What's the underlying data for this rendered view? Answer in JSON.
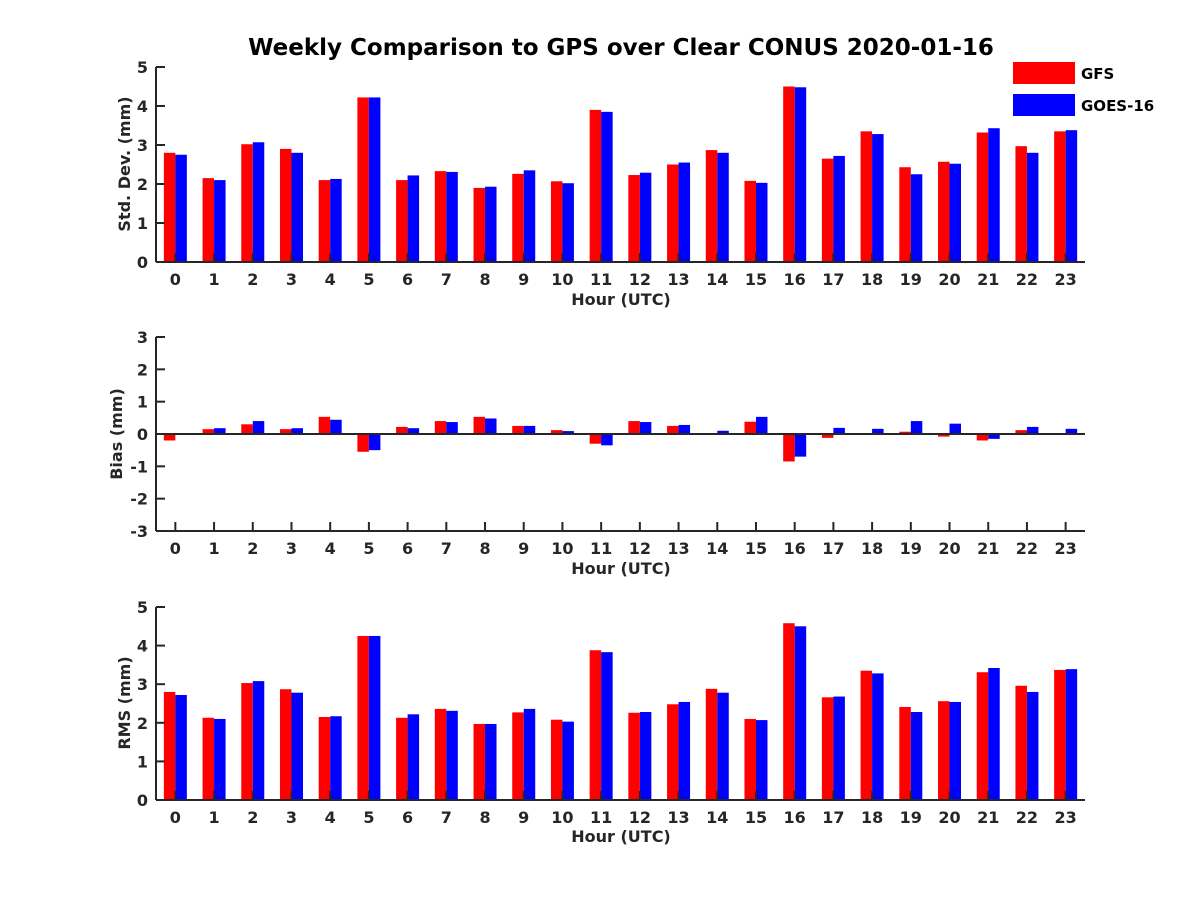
{
  "title": "Weekly Comparison to GPS over Clear CONUS 2020-01-16",
  "legend": [
    {
      "name": "GFS",
      "color": "#ff0000"
    },
    {
      "name": "GOES-16",
      "color": "#0000ff"
    }
  ],
  "chart_data": [
    {
      "type": "bar",
      "title": "Weekly Comparison to GPS over Clear CONUS 2020-01-16",
      "xlabel": "Hour (UTC)",
      "ylabel": "Std. Dev. (mm)",
      "ylim": [
        0,
        5
      ],
      "yticks": [
        0,
        1,
        2,
        3,
        4,
        5
      ],
      "categories": [
        "0",
        "1",
        "2",
        "3",
        "4",
        "5",
        "6",
        "7",
        "8",
        "9",
        "10",
        "11",
        "12",
        "13",
        "14",
        "15",
        "16",
        "17",
        "18",
        "19",
        "20",
        "21",
        "22",
        "23"
      ],
      "series": [
        {
          "name": "GFS",
          "color": "#ff0000",
          "values": [
            2.8,
            2.15,
            3.02,
            2.9,
            2.1,
            4.22,
            2.1,
            2.33,
            1.9,
            2.26,
            2.07,
            3.9,
            2.23,
            2.5,
            2.87,
            2.08,
            4.5,
            2.65,
            3.35,
            2.43,
            2.57,
            3.32,
            2.97,
            3.35
          ]
        },
        {
          "name": "GOES-16",
          "color": "#0000ff",
          "values": [
            2.75,
            2.1,
            3.07,
            2.8,
            2.13,
            4.22,
            2.22,
            2.31,
            1.93,
            2.35,
            2.02,
            3.85,
            2.29,
            2.55,
            2.8,
            2.03,
            4.48,
            2.72,
            3.28,
            2.25,
            2.52,
            3.43,
            2.8,
            3.38
          ]
        }
      ]
    },
    {
      "type": "bar",
      "title": "",
      "xlabel": "Hour (UTC)",
      "ylabel": "Bias (mm)",
      "ylim": [
        -3,
        3
      ],
      "yticks": [
        -3,
        -2,
        -1,
        0,
        1,
        2,
        3
      ],
      "categories": [
        "0",
        "1",
        "2",
        "3",
        "4",
        "5",
        "6",
        "7",
        "8",
        "9",
        "10",
        "11",
        "12",
        "13",
        "14",
        "15",
        "16",
        "17",
        "18",
        "19",
        "20",
        "21",
        "22",
        "23"
      ],
      "series": [
        {
          "name": "GFS",
          "color": "#ff0000",
          "values": [
            -0.2,
            0.15,
            0.3,
            0.15,
            0.53,
            -0.55,
            0.22,
            0.4,
            0.53,
            0.25,
            0.12,
            -0.3,
            0.4,
            0.25,
            0.0,
            0.38,
            -0.85,
            -0.12,
            -0.03,
            0.07,
            -0.08,
            -0.2,
            0.12,
            0.0
          ]
        },
        {
          "name": "GOES-16",
          "color": "#0000ff",
          "values": [
            0.0,
            0.18,
            0.4,
            0.18,
            0.44,
            -0.5,
            0.18,
            0.37,
            0.48,
            0.25,
            0.09,
            -0.35,
            0.37,
            0.28,
            0.1,
            0.53,
            -0.7,
            0.19,
            0.16,
            0.4,
            0.32,
            -0.15,
            0.22,
            0.16
          ]
        }
      ]
    },
    {
      "type": "bar",
      "title": "",
      "xlabel": "Hour (UTC)",
      "ylabel": "RMS (mm)",
      "ylim": [
        0,
        5
      ],
      "yticks": [
        0,
        1,
        2,
        3,
        4,
        5
      ],
      "categories": [
        "0",
        "1",
        "2",
        "3",
        "4",
        "5",
        "6",
        "7",
        "8",
        "9",
        "10",
        "11",
        "12",
        "13",
        "14",
        "15",
        "16",
        "17",
        "18",
        "19",
        "20",
        "21",
        "22",
        "23"
      ],
      "series": [
        {
          "name": "GFS",
          "color": "#ff0000",
          "values": [
            2.8,
            2.13,
            3.03,
            2.87,
            2.15,
            4.25,
            2.13,
            2.36,
            1.97,
            2.27,
            2.08,
            3.88,
            2.26,
            2.48,
            2.88,
            2.1,
            4.58,
            2.66,
            3.35,
            2.41,
            2.56,
            3.31,
            2.96,
            3.37
          ]
        },
        {
          "name": "GOES-16",
          "color": "#0000ff",
          "values": [
            2.72,
            2.1,
            3.08,
            2.78,
            2.17,
            4.25,
            2.22,
            2.31,
            1.97,
            2.36,
            2.03,
            3.83,
            2.28,
            2.54,
            2.78,
            2.07,
            4.5,
            2.68,
            3.28,
            2.28,
            2.54,
            3.42,
            2.8,
            3.39
          ]
        }
      ]
    }
  ]
}
